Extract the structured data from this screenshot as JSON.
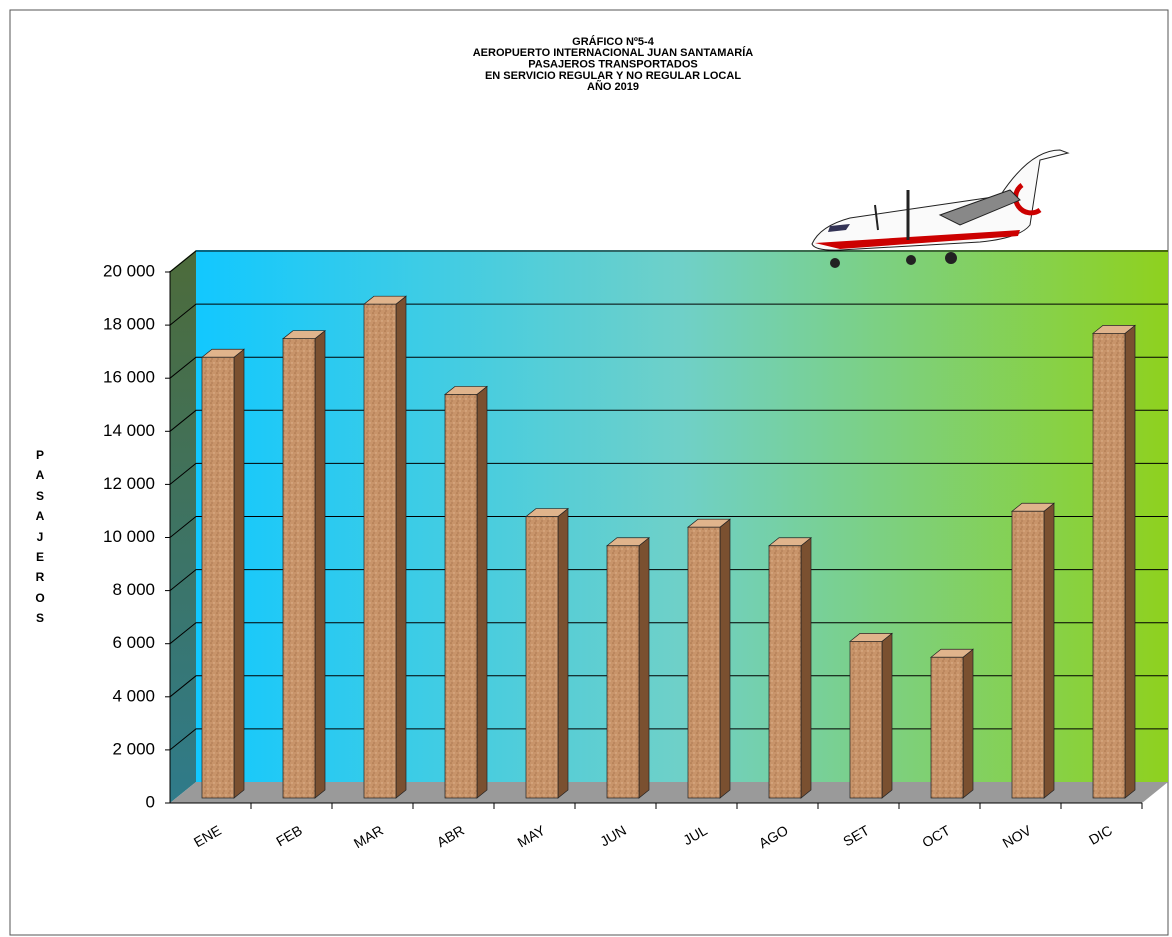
{
  "chart_data": {
    "type": "bar3d",
    "title": [
      "GRÁFICO Nº5-4",
      "AEROPUERTO  INTERNACIONAL  JUAN SANTAMARÍA",
      "PASAJEROS TRANSPORTADOS",
      "EN SERVICIO REGULAR Y NO REGULAR  LOCAL",
      "AÑO 2019"
    ],
    "y_label": "PASAJEROS",
    "categories": [
      "ENE",
      "FEB",
      "MAR",
      "ABR",
      "MAY",
      "JUN",
      "JUL",
      "AGO",
      "SET",
      "OCT",
      "NOV",
      "DIC"
    ],
    "values": [
      16600,
      17300,
      18600,
      15200,
      10600,
      9500,
      10200,
      9500,
      5900,
      5300,
      10800,
      17500
    ],
    "color": "#c8946a",
    "ylim": [
      0,
      20000
    ],
    "yticks": [
      0,
      {
        "value": 2000,
        "label": "2 000"
      },
      {
        "value": 4000,
        "label": "4 000"
      },
      {
        "value": 6000,
        "label": "6 000"
      },
      {
        "value": 8000,
        "label": "8 000"
      },
      {
        "value": 10000,
        "label": "10 000"
      },
      {
        "value": 12000,
        "label": "12 000"
      },
      {
        "value": 14000,
        "label": "14 000"
      },
      {
        "value": 16000,
        "label": "16 000"
      },
      {
        "value": 18000,
        "label": "18 000"
      },
      {
        "value": 20000,
        "label": "20 000"
      }
    ],
    "grid": true
  }
}
